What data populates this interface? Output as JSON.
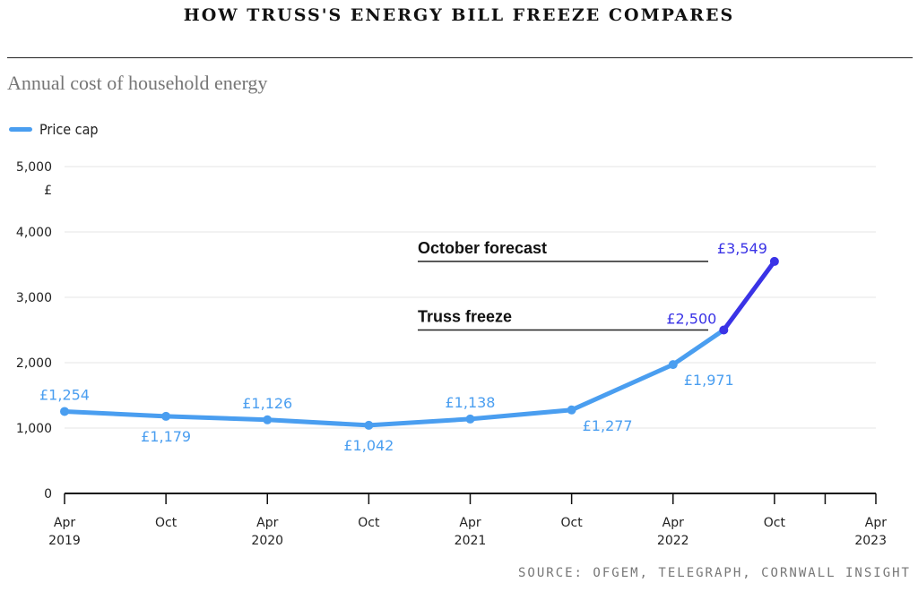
{
  "title": "HOW TRUSS'S ENERGY BILL FREEZE COMPARES",
  "subtitle": "Annual cost of household energy",
  "source": "SOURCE: OFGEM, TELEGRAPH, CORNWALL INSIGHT",
  "legend": {
    "label": "Price cap",
    "color": "#4a9ef0"
  },
  "colors": {
    "series": "#4a9ef0",
    "forecast": "#3a33e6",
    "grid": "#e6e6e6",
    "axis": "#111111"
  },
  "chart_data": {
    "type": "line",
    "ylabel": "£",
    "ylim": [
      0,
      5000
    ],
    "yticks": [
      0,
      1000,
      2000,
      3000,
      4000,
      5000
    ],
    "ytick_labels": [
      "0",
      "1,000",
      "2,000",
      "3,000",
      "4,000",
      "5,000"
    ],
    "xlim": [
      "2019-04",
      "2023-04"
    ],
    "xticks": [
      {
        "date": "2019-04",
        "line1": "Apr",
        "line2": "2019"
      },
      {
        "date": "2019-10",
        "line1": "Oct",
        "line2": ""
      },
      {
        "date": "2020-04",
        "line1": "Apr",
        "line2": "2020"
      },
      {
        "date": "2020-10",
        "line1": "Oct",
        "line2": ""
      },
      {
        "date": "2021-04",
        "line1": "Apr",
        "line2": "2021"
      },
      {
        "date": "2021-10",
        "line1": "Oct",
        "line2": ""
      },
      {
        "date": "2022-04",
        "line1": "Apr",
        "line2": "2022"
      },
      {
        "date": "2022-10",
        "line1": "Oct",
        "line2": ""
      },
      {
        "date": "2023-01",
        "line1": "",
        "line2": ""
      },
      {
        "date": "2023-04",
        "line1": "Apr",
        "line2": "2023"
      }
    ],
    "series": [
      {
        "name": "Price cap",
        "points": [
          {
            "x": "2019-04",
            "y": 1254,
            "label": "£1,254",
            "pos": "above"
          },
          {
            "x": "2019-10",
            "y": 1179,
            "label": "£1,179",
            "pos": "below"
          },
          {
            "x": "2020-04",
            "y": 1126,
            "label": "£1,126",
            "pos": "above"
          },
          {
            "x": "2020-10",
            "y": 1042,
            "label": "£1,042",
            "pos": "below"
          },
          {
            "x": "2021-04",
            "y": 1138,
            "label": "£1,138",
            "pos": "above"
          },
          {
            "x": "2021-10",
            "y": 1277,
            "label": "£1,277",
            "pos": "below-right"
          },
          {
            "x": "2022-04",
            "y": 1971,
            "label": "£1,971",
            "pos": "below-right"
          },
          {
            "x": "2022-07",
            "y": 2500,
            "label": "",
            "pos": ""
          }
        ]
      },
      {
        "points": [
          {
            "x": "2022-07",
            "y": 2500,
            "label": "£2,500",
            "pos": "left"
          },
          {
            "x": "2022-10",
            "y": 3549,
            "label": "£3,549",
            "pos": "above-left"
          }
        ]
      }
    ],
    "annotations": [
      {
        "text": "October forecast",
        "y": 3549
      },
      {
        "text": "Truss freeze",
        "y": 2500
      }
    ]
  }
}
